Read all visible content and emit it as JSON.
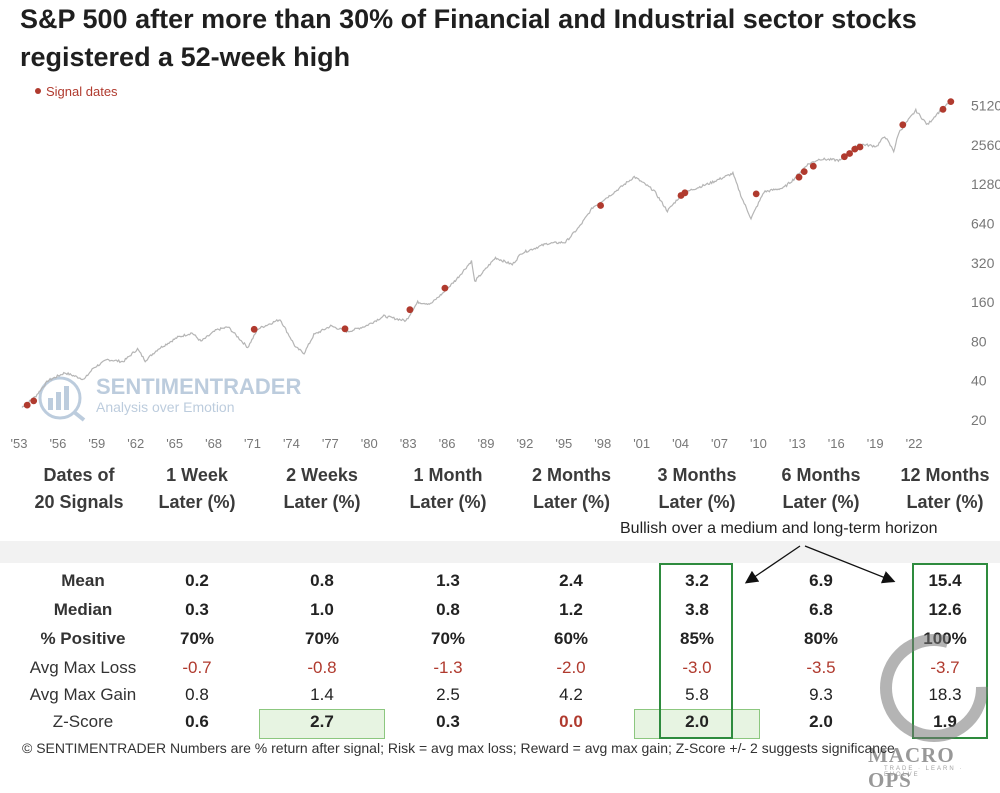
{
  "title": "S&P 500 after more than 30% of Financial and Industrial sector stocks registered a 52-week high",
  "legend": {
    "label": "Signal dates",
    "marker_color": "#b03a2e"
  },
  "colors": {
    "price_line": "#b5b5b5",
    "signal": "#b03a2e",
    "highlight_box": "#2e8b3e",
    "highlight_fill": "#e7f4e2",
    "negative": "#b03a2e",
    "axis_text": "#777777"
  },
  "watermark": {
    "name": "SENTIMENTRADER",
    "tagline": "Analysis over Emotion"
  },
  "chart_data": {
    "type": "line",
    "title": "S&P 500 after more than 30% of Financial and Industrial sector stocks registered a 52-week high",
    "xlabel": "",
    "ylabel": "",
    "y_scale": "log2",
    "ylim": [
      20,
      6400
    ],
    "xlim": [
      1953,
      2025
    ],
    "x_ticks": [
      "'53",
      "'56",
      "'59",
      "'62",
      "'65",
      "'68",
      "'71",
      "'74",
      "'77",
      "'80",
      "'83",
      "'86",
      "'89",
      "'92",
      "'95",
      "'98",
      "'01",
      "'04",
      "'07",
      "'10",
      "'13",
      "'16",
      "'19",
      "'22"
    ],
    "y_ticks": [
      20,
      40,
      80,
      160,
      320,
      640,
      1280,
      2560,
      5120
    ],
    "y_tick_labels": [
      "20",
      "40",
      "80",
      "160",
      "320",
      "640",
      "1280",
      "2560",
      "5120"
    ],
    "series": [
      {
        "name": "S&P 500",
        "x": [
          1953.0,
          1954.0,
          1955.0,
          1956.3,
          1957.8,
          1958.5,
          1959.6,
          1960.8,
          1961.9,
          1962.5,
          1963.5,
          1965.0,
          1966.1,
          1966.8,
          1968.0,
          1968.9,
          1970.4,
          1971.2,
          1972.9,
          1974.1,
          1974.75,
          1975.5,
          1976.8,
          1978.1,
          1979.5,
          1980.9,
          1982.6,
          1983.5,
          1984.5,
          1985.5,
          1986.5,
          1987.65,
          1987.9,
          1989.5,
          1990.8,
          1991.5,
          1993.5,
          1994.9,
          1996.0,
          1997.0,
          1998.6,
          2000.2,
          2001.7,
          2002.75,
          2003.6,
          2004.5,
          2006.0,
          2007.8,
          2008.5,
          2009.2,
          2010.2,
          2011.7,
          2012.5,
          2013.5,
          2014.5,
          2016.1,
          2017.5,
          2018.9,
          2019.5,
          2020.2,
          2020.6,
          2021.9,
          2022.8,
          2023.5,
          2024.3,
          2024.7
        ],
        "values": [
          25,
          30,
          40,
          46,
          41,
          50,
          58,
          56,
          70,
          57,
          70,
          86,
          93,
          80,
          98,
          103,
          72,
          100,
          118,
          72,
          65,
          90,
          105,
          95,
          105,
          125,
          115,
          160,
          155,
          190,
          240,
          330,
          230,
          350,
          310,
          380,
          450,
          460,
          610,
          850,
          1100,
          1460,
          1150,
          800,
          1000,
          1150,
          1300,
          1550,
          1000,
          700,
          1120,
          1200,
          1400,
          1800,
          2000,
          1950,
          2600,
          2500,
          3000,
          2300,
          3200,
          4700,
          3650,
          4400,
          5200,
          5600
        ]
      }
    ],
    "signal_dates": [
      {
        "x": 1953.4,
        "y": 26
      },
      {
        "x": 1953.9,
        "y": 28
      },
      {
        "x": 1970.9,
        "y": 99
      },
      {
        "x": 1977.9,
        "y": 100
      },
      {
        "x": 1982.9,
        "y": 140
      },
      {
        "x": 1985.6,
        "y": 205
      },
      {
        "x": 1997.6,
        "y": 880
      },
      {
        "x": 2003.8,
        "y": 1050
      },
      {
        "x": 2004.1,
        "y": 1100
      },
      {
        "x": 2009.6,
        "y": 1080
      },
      {
        "x": 2012.9,
        "y": 1450
      },
      {
        "x": 2013.3,
        "y": 1600
      },
      {
        "x": 2014.0,
        "y": 1760
      },
      {
        "x": 2016.4,
        "y": 2080
      },
      {
        "x": 2016.8,
        "y": 2200
      },
      {
        "x": 2017.2,
        "y": 2380
      },
      {
        "x": 2017.6,
        "y": 2470
      },
      {
        "x": 2020.9,
        "y": 3650
      },
      {
        "x": 2024.0,
        "y": 4800
      },
      {
        "x": 2024.6,
        "y": 5500
      }
    ]
  },
  "table": {
    "headers": [
      {
        "line1": "Dates of",
        "line2": "20 Signals"
      },
      {
        "line1": "1 Week",
        "line2": "Later (%)"
      },
      {
        "line1": "2 Weeks",
        "line2": "Later (%)"
      },
      {
        "line1": "1 Month",
        "line2": "Later (%)"
      },
      {
        "line1": "2 Months",
        "line2": "Later (%)"
      },
      {
        "line1": "3 Months",
        "line2": "Later (%)"
      },
      {
        "line1": "6 Months",
        "line2": "Later (%)"
      },
      {
        "line1": "12 Months",
        "line2": "Later (%)"
      }
    ],
    "annotation": "Bullish over a medium and long-term horizon",
    "rows": [
      {
        "label": "Mean",
        "bold": true,
        "values": [
          "0.2",
          "0.8",
          "1.3",
          "2.4",
          "3.2",
          "6.9",
          "15.4"
        ]
      },
      {
        "label": "Median",
        "bold": true,
        "values": [
          "0.3",
          "1.0",
          "0.8",
          "1.2",
          "3.8",
          "6.8",
          "12.6"
        ]
      },
      {
        "label": "% Positive",
        "bold": true,
        "values": [
          "70%",
          "70%",
          "70%",
          "60%",
          "85%",
          "80%",
          "100%"
        ]
      },
      {
        "label": "Avg Max Loss",
        "bold": false,
        "values": [
          "-0.7",
          "-0.8",
          "-1.3",
          "-2.0",
          "-3.0",
          "-3.5",
          "-3.7"
        ]
      },
      {
        "label": "Avg Max Gain",
        "bold": false,
        "values": [
          "0.8",
          "1.4",
          "2.5",
          "4.2",
          "5.8",
          "9.3",
          "18.3"
        ]
      },
      {
        "label": "Z-Score",
        "bold": false,
        "values": [
          "0.6",
          "2.7",
          "0.3",
          "0.0",
          "2.0",
          "2.0",
          "1.9"
        ]
      }
    ],
    "footer": "© SENTIMENTRADER  Numbers are % return after signal; Risk = avg max loss; Reward = avg max gain; Z-Score +/- 2 suggests significance"
  },
  "macro_watermark": {
    "name": "MACRO OPS",
    "tagline": "TRADE · LEARN · EVOLVE"
  }
}
